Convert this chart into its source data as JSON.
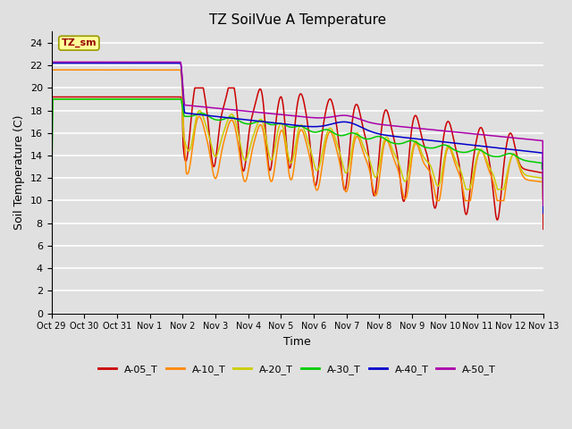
{
  "title": "TZ SoilVue A Temperature",
  "xlabel": "Time",
  "ylabel": "Soil Temperature (C)",
  "ylim": [
    0,
    25
  ],
  "yticks": [
    0,
    2,
    4,
    6,
    8,
    10,
    12,
    14,
    16,
    18,
    20,
    22,
    24
  ],
  "bg_color": "#e0e0e0",
  "plot_bg_color": "#e0e0e0",
  "grid_color": "white",
  "annotation_text": "TZ_sm",
  "annotation_bg": "#ffff99",
  "annotation_border": "#999900",
  "annotation_color": "#990000",
  "xtick_labels": [
    "Oct 29",
    "Oct 30",
    "Oct 31",
    "Nov 1",
    "Nov 2",
    "Nov 3",
    "Nov 4",
    "Nov 5",
    "Nov 6",
    "Nov 7",
    "Nov 8",
    "Nov 9",
    "Nov 10",
    "Nov 11",
    "Nov 12",
    "Nov 13"
  ],
  "series": [
    {
      "name": "A-05_T",
      "color": "#cc0000"
    },
    {
      "name": "A-10_T",
      "color": "#ff8800"
    },
    {
      "name": "A-20_T",
      "color": "#cccc00"
    },
    {
      "name": "A-30_T",
      "color": "#00cc00"
    },
    {
      "name": "A-40_T",
      "color": "#0000cc"
    },
    {
      "name": "A-50_T",
      "color": "#aa00aa"
    }
  ]
}
